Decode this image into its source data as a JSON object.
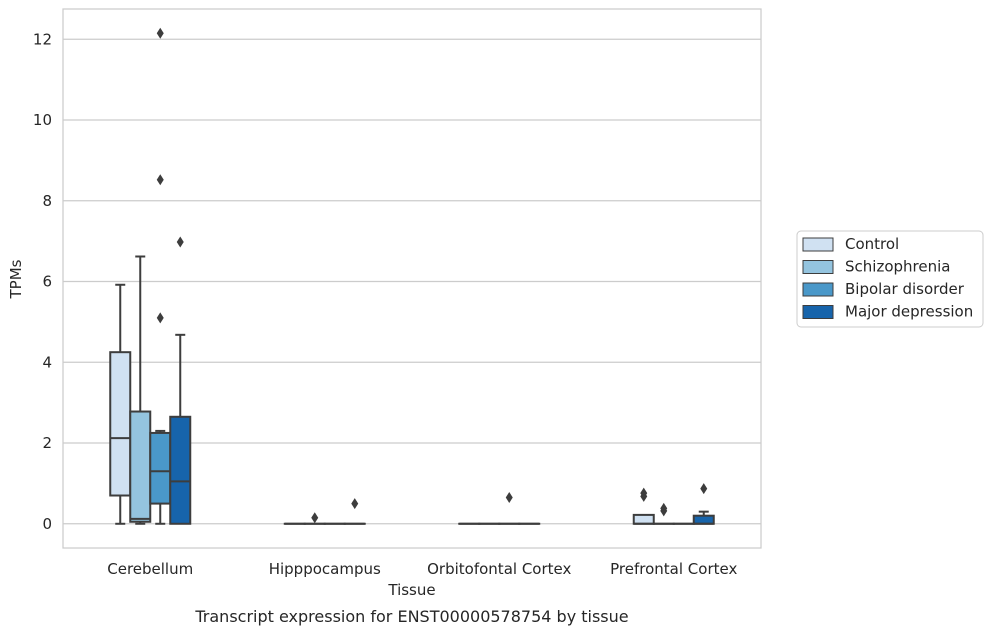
{
  "chart_data": {
    "type": "box",
    "title": "",
    "caption": "Transcript expression for ENST00000578754 by tissue",
    "xlabel": "Tissue",
    "ylabel": "TPMs",
    "ylim": [
      -0.6,
      12.75
    ],
    "yticks": [
      0,
      2,
      4,
      6,
      8,
      10,
      12
    ],
    "grid": "horizontal",
    "legend_position": "right",
    "categories": [
      "Cerebellum",
      "Hipppocampus",
      "Orbitofontal Cortex",
      "Prefrontal Cortex"
    ],
    "series": [
      {
        "name": "Control",
        "color": "#d0e1f2",
        "boxes": [
          {
            "whislo": 0.0,
            "q1": 0.7,
            "med": 2.12,
            "q3": 4.25,
            "whishi": 5.92,
            "fliers": []
          },
          {
            "whislo": 0.0,
            "q1": 0.0,
            "med": 0.0,
            "q3": 0.0,
            "whishi": 0.0,
            "fliers": []
          },
          {
            "whislo": 0.0,
            "q1": 0.0,
            "med": 0.0,
            "q3": 0.0,
            "whishi": 0.0,
            "fliers": []
          },
          {
            "whislo": 0.0,
            "q1": 0.0,
            "med": 0.0,
            "q3": 0.22,
            "whishi": 0.22,
            "fliers": [
              0.68,
              0.76
            ]
          }
        ]
      },
      {
        "name": "Schizophrenia",
        "color": "#94c4df",
        "boxes": [
          {
            "whislo": 0.0,
            "q1": 0.05,
            "med": 0.12,
            "q3": 2.78,
            "whishi": 6.62,
            "fliers": []
          },
          {
            "whislo": 0.0,
            "q1": 0.0,
            "med": 0.0,
            "q3": 0.0,
            "whishi": 0.0,
            "fliers": [
              0.15
            ]
          },
          {
            "whislo": 0.0,
            "q1": 0.0,
            "med": 0.0,
            "q3": 0.0,
            "whishi": 0.0,
            "fliers": []
          },
          {
            "whislo": 0.0,
            "q1": 0.0,
            "med": 0.0,
            "q3": 0.0,
            "whishi": 0.0,
            "fliers": [
              0.32,
              0.38
            ]
          }
        ]
      },
      {
        "name": "Bipolar disorder",
        "color": "#4a98c9",
        "boxes": [
          {
            "whislo": 0.0,
            "q1": 0.5,
            "med": 1.3,
            "q3": 2.25,
            "whishi": 2.3,
            "fliers": [
              5.1,
              8.52,
              12.15
            ]
          },
          {
            "whislo": 0.0,
            "q1": 0.0,
            "med": 0.0,
            "q3": 0.0,
            "whishi": 0.0,
            "fliers": []
          },
          {
            "whislo": 0.0,
            "q1": 0.0,
            "med": 0.0,
            "q3": 0.0,
            "whishi": 0.0,
            "fliers": [
              0.65
            ]
          },
          {
            "whislo": 0.0,
            "q1": 0.0,
            "med": 0.0,
            "q3": 0.0,
            "whishi": 0.0,
            "fliers": []
          }
        ]
      },
      {
        "name": "Major depression",
        "color": "#1764ab",
        "boxes": [
          {
            "whislo": 0.0,
            "q1": 0.0,
            "med": 1.05,
            "q3": 2.65,
            "whishi": 4.68,
            "fliers": [
              6.98
            ]
          },
          {
            "whislo": 0.0,
            "q1": 0.0,
            "med": 0.0,
            "q3": 0.0,
            "whishi": 0.0,
            "fliers": [
              0.5
            ]
          },
          {
            "whislo": 0.0,
            "q1": 0.0,
            "med": 0.0,
            "q3": 0.0,
            "whishi": 0.0,
            "fliers": []
          },
          {
            "whislo": 0.0,
            "q1": 0.0,
            "med": 0.0,
            "q3": 0.2,
            "whishi": 0.3,
            "fliers": [
              0.87
            ]
          }
        ]
      }
    ]
  }
}
